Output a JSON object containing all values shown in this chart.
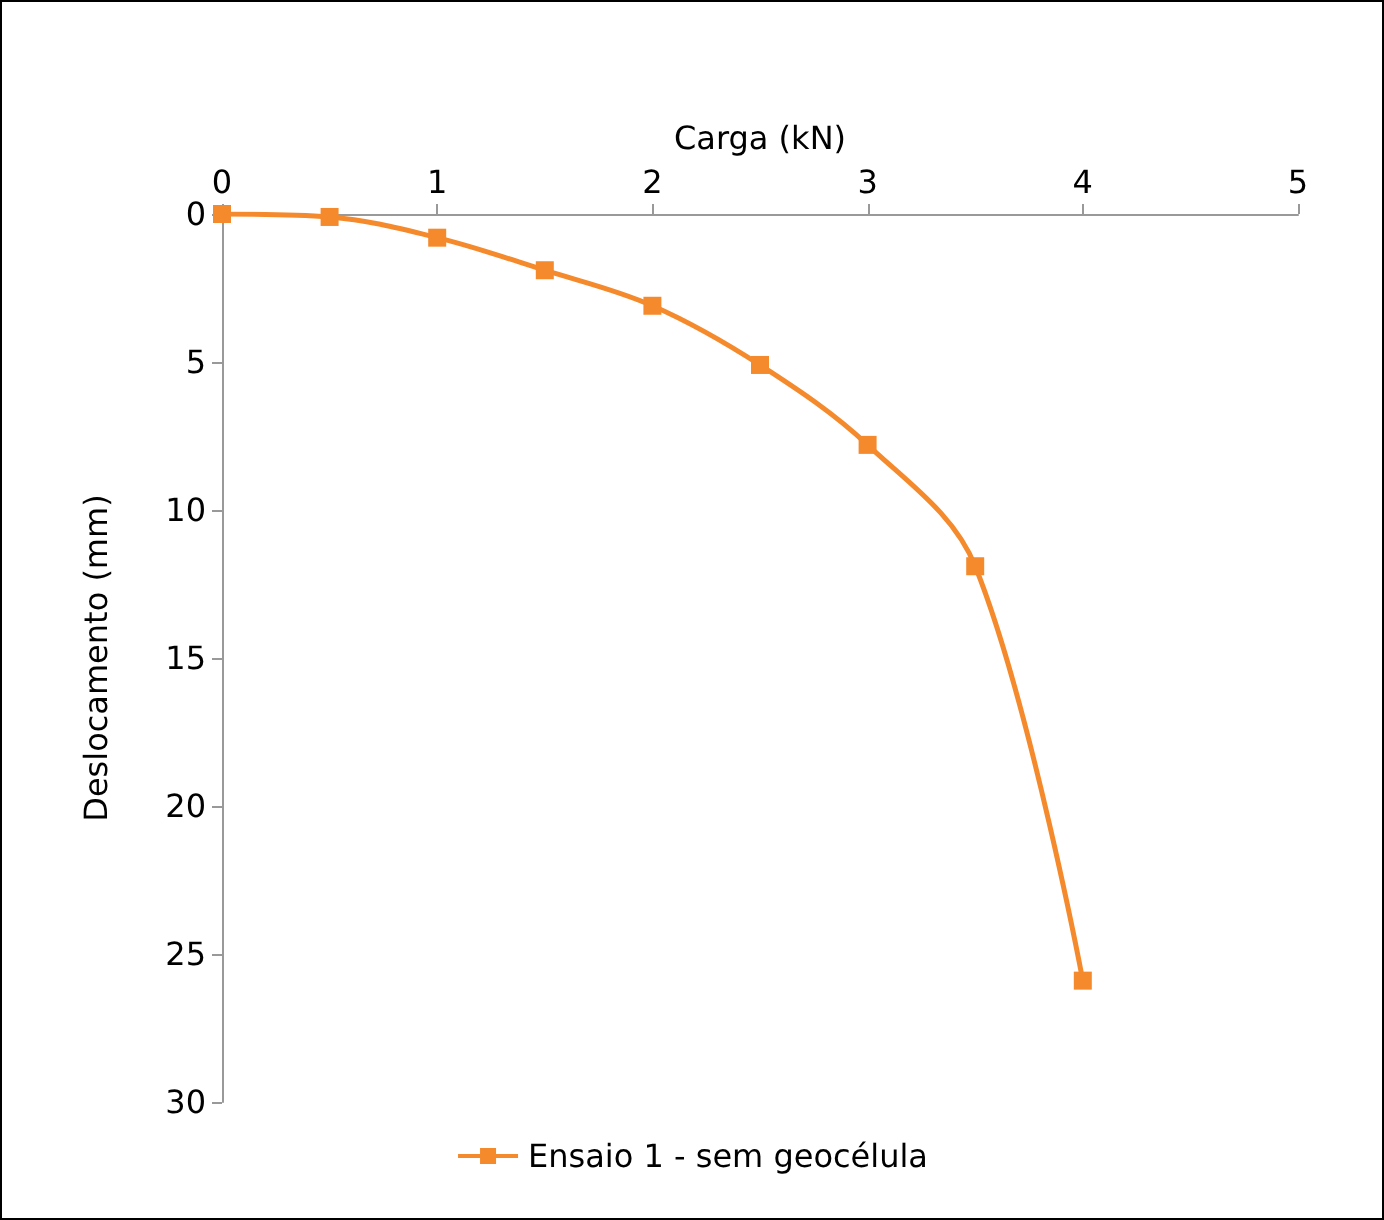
{
  "chart_data": {
    "type": "line",
    "xlabel": "Carga (kN)",
    "ylabel": "Deslocamento (mm)",
    "xlim": [
      0,
      5
    ],
    "xticks": [
      0,
      1,
      2,
      3,
      4,
      5
    ],
    "ylim": [
      30,
      0
    ],
    "yticks": [
      0,
      5,
      10,
      15,
      20,
      25,
      30
    ],
    "x": [
      0,
      0.5,
      1,
      1.5,
      2,
      2.5,
      3,
      3.5,
      4
    ],
    "series": [
      {
        "name": "Ensaio 1 - sem geocélula",
        "color": "#f58a2c",
        "values": [
          0,
          0.1,
          0.8,
          1.9,
          3.1,
          5.1,
          7.8,
          11.9,
          25.9
        ]
      }
    ],
    "marker": "square",
    "line_style": "solid",
    "grid": false,
    "legend": "bottom"
  }
}
